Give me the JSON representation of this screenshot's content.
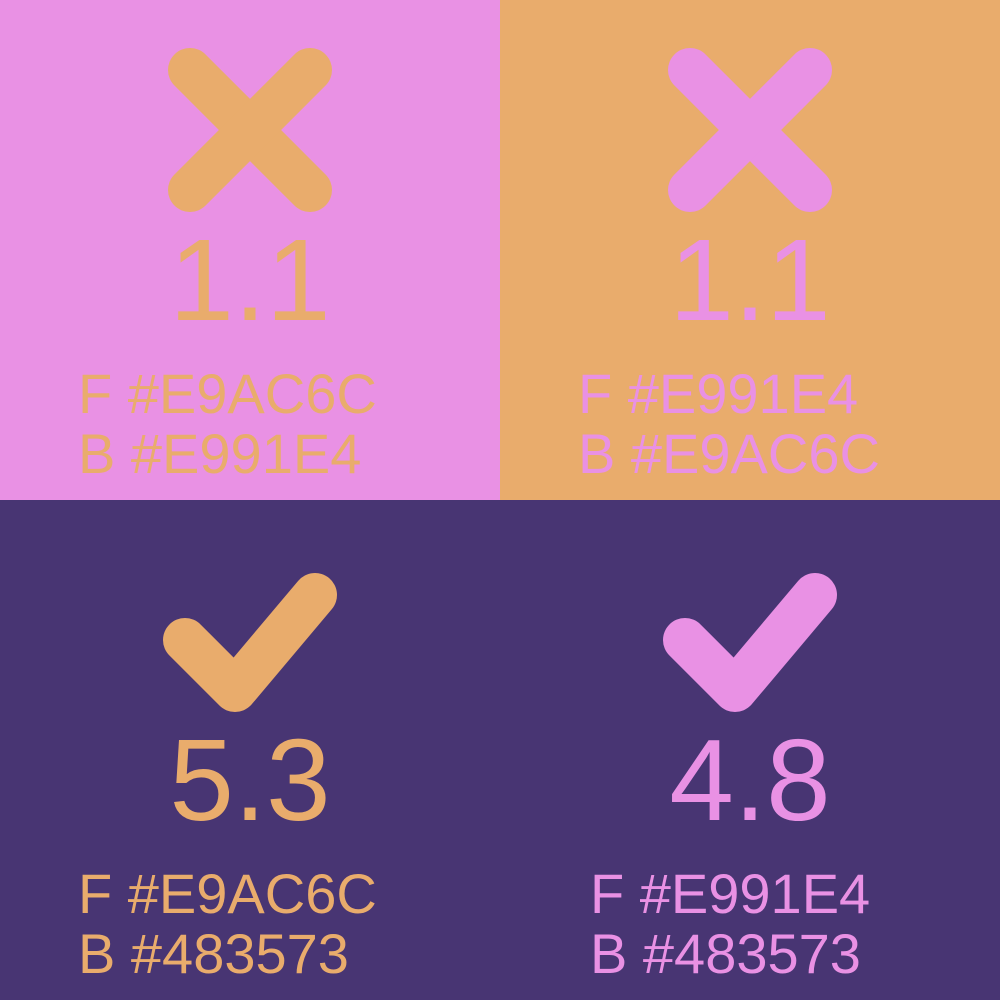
{
  "swatches": [
    {
      "status": "fail",
      "ratio": "1.1",
      "foreground_line": "F #E9AC6C",
      "background_line": "B #E991E4",
      "foreground": "#E9AC6C",
      "background": "#E991E4"
    },
    {
      "status": "fail",
      "ratio": "1.1",
      "foreground_line": "F #E991E4",
      "background_line": "B #E9AC6C",
      "foreground": "#E991E4",
      "background": "#E9AC6C"
    },
    {
      "status": "pass",
      "ratio": "5.3",
      "foreground_line": "F #E9AC6C",
      "background_line": "B #483573",
      "foreground": "#E9AC6C",
      "background": "#483573"
    },
    {
      "status": "pass",
      "ratio": "4.8",
      "foreground_line": "F #E991E4",
      "background_line": "B #483573",
      "foreground": "#E991E4",
      "background": "#483573"
    }
  ],
  "icons": {
    "fail": "x-icon",
    "pass": "check-icon"
  }
}
